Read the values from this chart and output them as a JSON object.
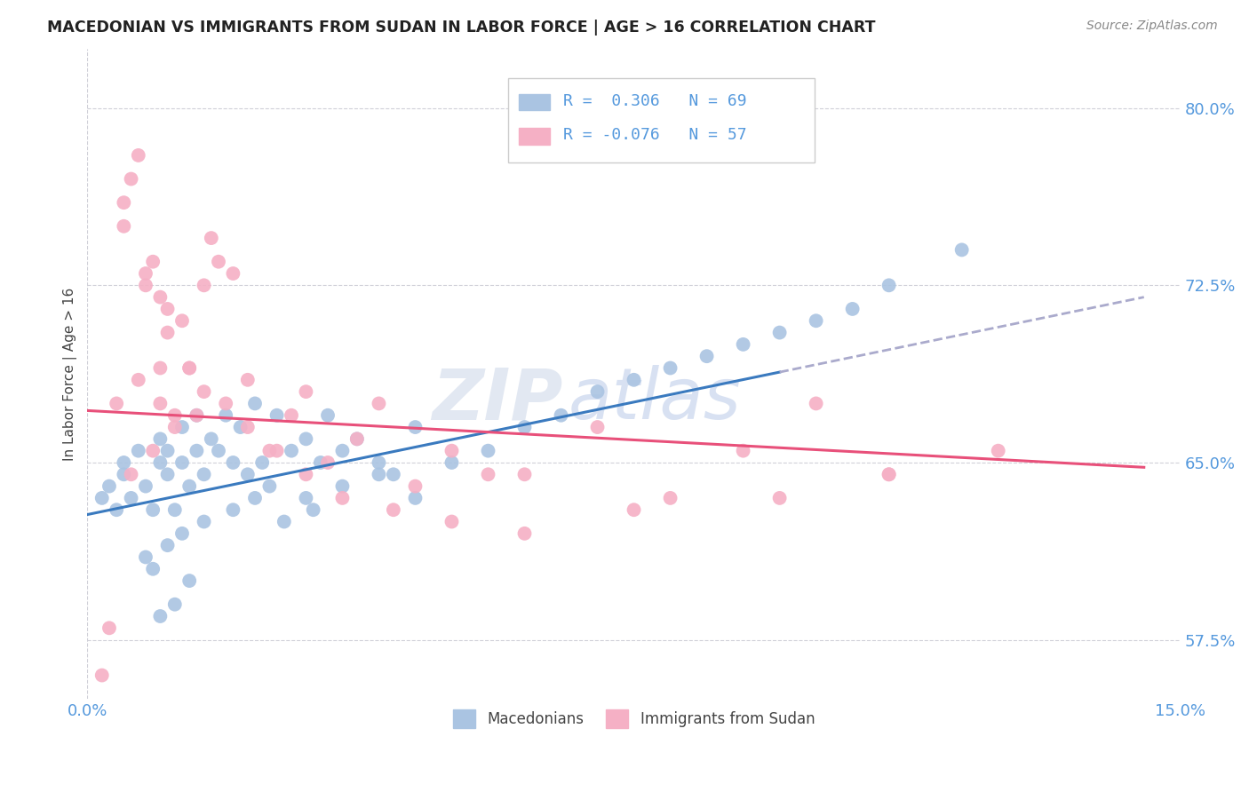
{
  "title": "MACEDONIAN VS IMMIGRANTS FROM SUDAN IN LABOR FORCE | AGE > 16 CORRELATION CHART",
  "source_text": "Source: ZipAtlas.com",
  "ylabel": "In Labor Force | Age > 16",
  "xlim": [
    0.0,
    15.0
  ],
  "ylim": [
    55.0,
    82.5
  ],
  "yticks": [
    57.5,
    65.0,
    72.5,
    80.0
  ],
  "xticks": [
    0.0,
    15.0
  ],
  "xticklabels": [
    "0.0%",
    "15.0%"
  ],
  "yticklabels": [
    "57.5%",
    "65.0%",
    "72.5%",
    "80.0%"
  ],
  "macedonian_color": "#aac4e2",
  "sudan_color": "#f5b0c5",
  "regression_blue_color": "#3a7abf",
  "regression_pink_color": "#e8507a",
  "tick_color": "#5599dd",
  "legend_line1": "R =  0.306   N = 69",
  "legend_line2": "R = -0.076   N = 57",
  "legend_label1": "Macedonians",
  "legend_label2": "Immigrants from Sudan",
  "watermark_zip": "ZIP",
  "watermark_atlas": "atlas",
  "blue_reg_x0": 0.0,
  "blue_reg_y0": 62.8,
  "blue_reg_x1": 14.5,
  "blue_reg_y1": 72.0,
  "pink_reg_x0": 0.0,
  "pink_reg_y0": 67.2,
  "pink_reg_x1": 14.5,
  "pink_reg_y1": 64.8,
  "blue_solid_x1": 9.5,
  "macedonian_x": [
    0.2,
    0.3,
    0.4,
    0.5,
    0.5,
    0.6,
    0.7,
    0.8,
    0.9,
    1.0,
    1.0,
    1.1,
    1.1,
    1.2,
    1.3,
    1.3,
    1.4,
    1.5,
    1.5,
    1.6,
    1.7,
    1.8,
    1.9,
    2.0,
    2.1,
    2.2,
    2.3,
    2.4,
    2.5,
    2.6,
    2.8,
    3.0,
    3.0,
    3.2,
    3.3,
    3.5,
    3.7,
    4.0,
    4.2,
    4.5,
    1.0,
    1.2,
    1.4,
    0.8,
    0.9,
    1.1,
    1.3,
    1.6,
    2.0,
    2.3,
    2.7,
    3.1,
    3.5,
    4.0,
    4.5,
    5.0,
    5.5,
    6.0,
    6.5,
    7.0,
    7.5,
    8.0,
    8.5,
    9.0,
    9.5,
    10.0,
    10.5,
    11.0,
    12.0
  ],
  "macedonian_y": [
    63.5,
    64.0,
    63.0,
    64.5,
    65.0,
    63.5,
    65.5,
    64.0,
    63.0,
    65.0,
    66.0,
    64.5,
    65.5,
    63.0,
    65.0,
    66.5,
    64.0,
    65.5,
    67.0,
    64.5,
    66.0,
    65.5,
    67.0,
    65.0,
    66.5,
    64.5,
    67.5,
    65.0,
    64.0,
    67.0,
    65.5,
    63.5,
    66.0,
    65.0,
    67.0,
    65.5,
    66.0,
    65.0,
    64.5,
    66.5,
    58.5,
    59.0,
    60.0,
    61.0,
    60.5,
    61.5,
    62.0,
    62.5,
    63.0,
    63.5,
    62.5,
    63.0,
    64.0,
    64.5,
    63.5,
    65.0,
    65.5,
    66.5,
    67.0,
    68.0,
    68.5,
    69.0,
    69.5,
    70.0,
    70.5,
    71.0,
    71.5,
    72.5,
    74.0
  ],
  "sudan_x": [
    0.2,
    0.3,
    0.4,
    0.5,
    0.6,
    0.7,
    0.8,
    0.9,
    1.0,
    1.0,
    1.1,
    1.2,
    1.3,
    1.4,
    1.5,
    1.6,
    1.7,
    1.8,
    2.0,
    2.2,
    2.5,
    2.8,
    3.0,
    3.3,
    3.7,
    4.0,
    4.5,
    5.0,
    5.5,
    6.0,
    7.0,
    8.0,
    9.0,
    10.0,
    11.0,
    0.5,
    0.6,
    0.7,
    0.8,
    0.9,
    1.0,
    1.1,
    1.2,
    1.4,
    1.6,
    1.9,
    2.2,
    2.6,
    3.0,
    3.5,
    4.2,
    5.0,
    6.0,
    7.5,
    9.5,
    11.0,
    12.5
  ],
  "sudan_y": [
    56.0,
    58.0,
    67.5,
    75.0,
    64.5,
    68.5,
    73.0,
    65.5,
    67.5,
    69.0,
    70.5,
    66.5,
    71.0,
    69.0,
    67.0,
    72.5,
    74.5,
    73.5,
    73.0,
    68.5,
    65.5,
    67.0,
    68.0,
    65.0,
    66.0,
    67.5,
    64.0,
    65.5,
    64.5,
    64.5,
    66.5,
    63.5,
    65.5,
    67.5,
    64.5,
    76.0,
    77.0,
    78.0,
    72.5,
    73.5,
    72.0,
    71.5,
    67.0,
    69.0,
    68.0,
    67.5,
    66.5,
    65.5,
    64.5,
    63.5,
    63.0,
    62.5,
    62.0,
    63.0,
    63.5,
    64.5,
    65.5
  ]
}
